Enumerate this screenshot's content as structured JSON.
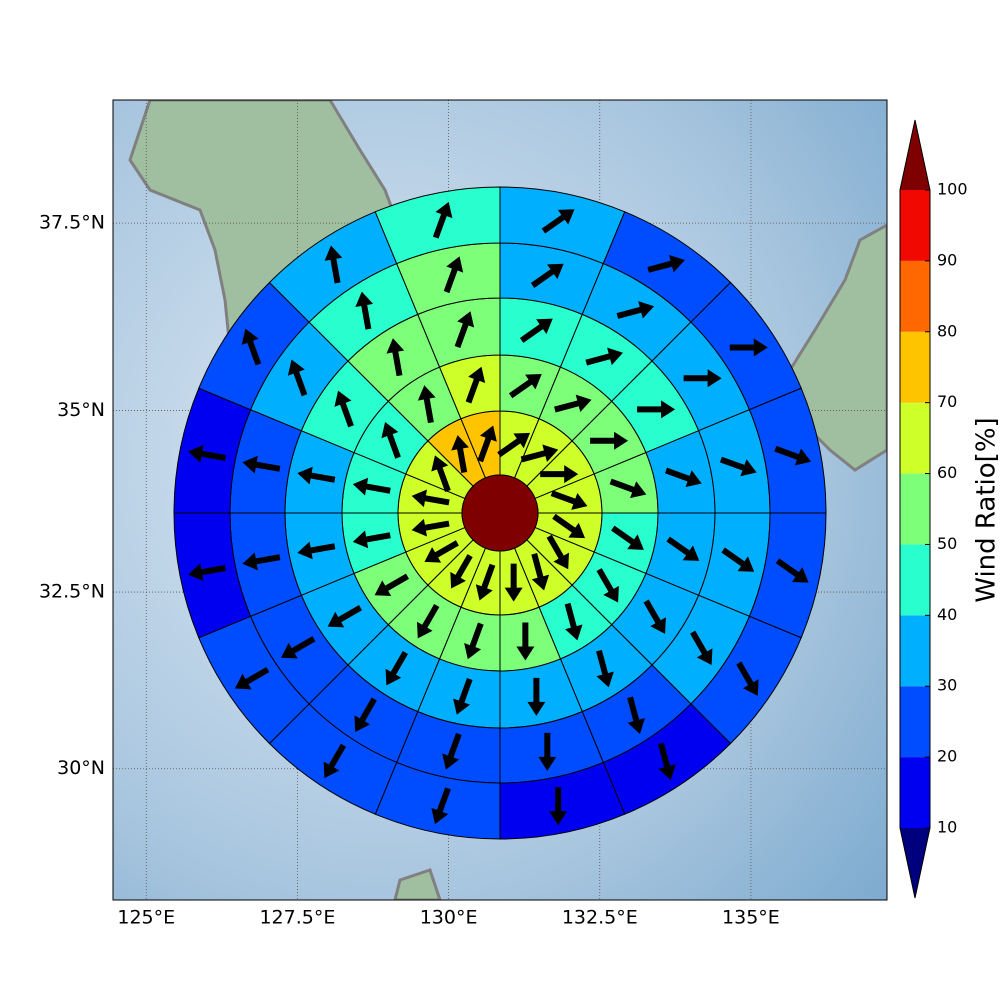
{
  "chart_data": {
    "type": "polar-map",
    "xlim": [
      124.45,
      137.25
    ],
    "ylim": [
      28.1,
      39.1
    ],
    "xticks": [
      {
        "value": 125,
        "label": "125°E"
      },
      {
        "value": 127.5,
        "label": "127.5°E"
      },
      {
        "value": 130,
        "label": "130°E"
      },
      {
        "value": 132.5,
        "label": "132.5°E"
      },
      {
        "value": 135,
        "label": "135°E"
      }
    ],
    "yticks": [
      {
        "value": 30,
        "label": "30°N"
      },
      {
        "value": 32.5,
        "label": "32.5°N"
      },
      {
        "value": 35,
        "label": "35°N"
      },
      {
        "value": 37.5,
        "label": "37.5°N"
      }
    ],
    "grid": true,
    "center_value": 105,
    "rings": [
      {
        "values": [
          65,
          65,
          65,
          65,
          65,
          65,
          65,
          65,
          65,
          65,
          65,
          65,
          65,
          65,
          75,
          75
        ]
      },
      {
        "values": [
          55,
          55,
          55,
          55,
          45,
          45,
          45,
          55,
          55,
          55,
          55,
          45,
          45,
          45,
          55,
          65
        ]
      },
      {
        "values": [
          45,
          45,
          45,
          35,
          35,
          35,
          35,
          35,
          35,
          35,
          35,
          35,
          35,
          45,
          55,
          55
        ]
      },
      {
        "values": [
          35,
          35,
          35,
          35,
          35,
          35,
          25,
          25,
          25,
          25,
          25,
          25,
          25,
          35,
          45,
          55
        ]
      },
      {
        "values": [
          35,
          25,
          25,
          25,
          25,
          25,
          15,
          15,
          25,
          25,
          25,
          15,
          15,
          25,
          35,
          45
        ]
      }
    ],
    "wind_direction": [
      55,
      75,
      90,
      110,
      125,
      150,
      165,
      180,
      200,
      210,
      240,
      260,
      280,
      340,
      350,
      20
    ],
    "colorbar": {
      "label": "Wind Ratio[%]",
      "levels": [
        10,
        20,
        30,
        40,
        50,
        60,
        70,
        80,
        90,
        100
      ],
      "colors": [
        "#00007f",
        "#0000f1",
        "#004cff",
        "#00b0ff",
        "#29ffce",
        "#7dff7a",
        "#ceff29",
        "#ffc400",
        "#ff6800",
        "#f10800",
        "#7f0000"
      ]
    }
  }
}
